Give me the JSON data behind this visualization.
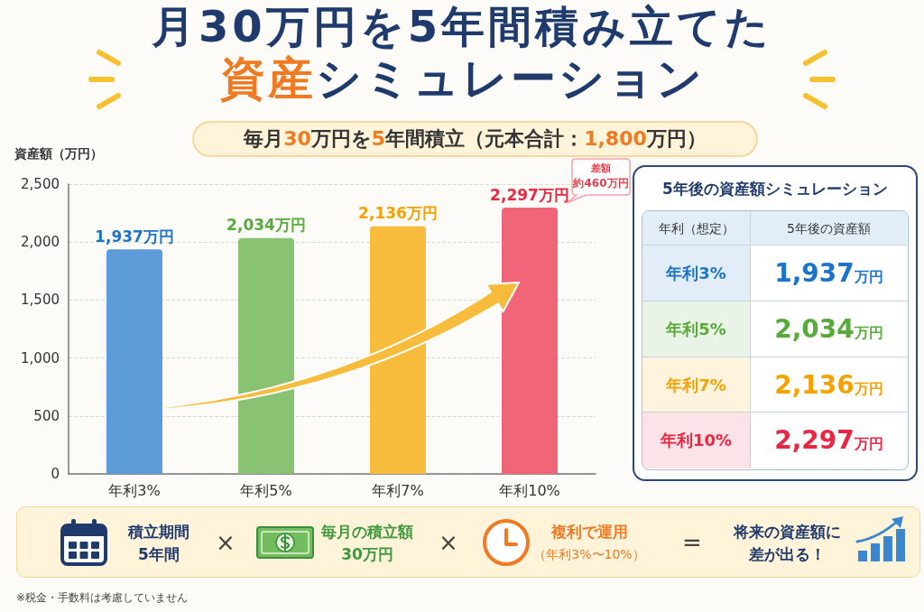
{
  "chart_data": {
    "type": "bar",
    "title": "月30万円を5年間積み立てた資産シミュレーション",
    "subtitle": "毎月30万円を5年間積立（元本合計：1,800万円）",
    "ylabel": "資産額（万円）",
    "categories": [
      "年利3%",
      "年利5%",
      "年利7%",
      "年利10%"
    ],
    "values": [
      1937,
      2034,
      2136,
      2297
    ],
    "colors": [
      "#5d9cd8",
      "#88c272",
      "#f8bc3c",
      "#f06578"
    ],
    "value_labels": [
      "1,937万円",
      "2,034万円",
      "2,136万円",
      "2,297万円"
    ],
    "ylim": [
      0,
      2500
    ],
    "yticks": [
      0,
      500,
      {
        "value": 1000,
        "label": "1,000"
      },
      {
        "value": 1500,
        "label": "1,500"
      },
      {
        "value": 2000,
        "label": "2,000"
      },
      {
        "value": 2500,
        "label": "2,500"
      }
    ],
    "grid": "y",
    "annotations": [
      "差額",
      "約460万円",
      "5年後の資産額シミュレーション",
      "年利（想定）",
      "5年後の資産額",
      "積立期間",
      "5年間",
      "×",
      "毎月の積立額",
      "30万円",
      "×",
      "複利で運用",
      "（年利3%〜10%）",
      "=",
      "将来の資産額に",
      "差が出る！",
      "※税金・手数料は考慮していません"
    ]
  }
}
